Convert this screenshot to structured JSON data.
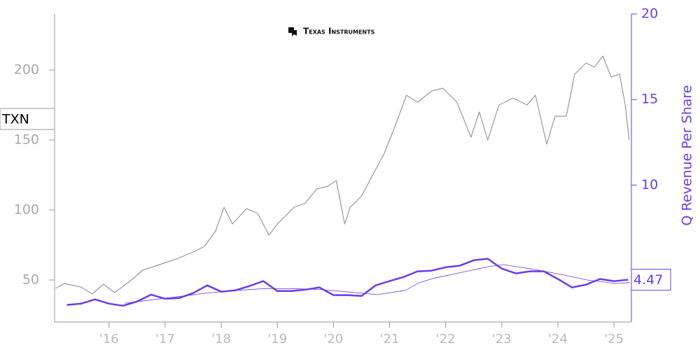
{
  "chart_data": {
    "type": "line",
    "logo": "Texas Instruments",
    "y2label": "Q Revenue Per Share",
    "xlim": [
      2015.03,
      2025.31
    ],
    "xticks": [
      {
        "value": 2016,
        "label": "'16"
      },
      {
        "value": 2017,
        "label": "'17"
      },
      {
        "value": 2018,
        "label": "'18"
      },
      {
        "value": 2019,
        "label": "'19"
      },
      {
        "value": 2020,
        "label": "'20"
      },
      {
        "value": 2021,
        "label": "'21"
      },
      {
        "value": 2022,
        "label": "'22"
      },
      {
        "value": 2023,
        "label": "'23"
      },
      {
        "value": 2024,
        "label": "'24"
      },
      {
        "value": 2025,
        "label": "'25"
      }
    ],
    "ylim": [
      20,
      240
    ],
    "yticks": [
      50,
      100,
      150,
      200
    ],
    "y2lim": [
      2,
      20
    ],
    "y2ticks": [
      10,
      15,
      20
    ],
    "series": [
      {
        "name": "TXN",
        "color": "#999999",
        "x": [
          2015.05,
          2015.2,
          2015.5,
          2015.7,
          2015.9,
          2016.1,
          2016.4,
          2016.6,
          2016.9,
          2017.2,
          2017.5,
          2017.7,
          2017.9,
          2018.05,
          2018.2,
          2018.45,
          2018.65,
          2018.85,
          2019.0,
          2019.3,
          2019.5,
          2019.7,
          2019.9,
          2020.05,
          2020.2,
          2020.3,
          2020.5,
          2020.7,
          2020.9,
          2021.1,
          2021.3,
          2021.5,
          2021.75,
          2021.95,
          2022.2,
          2022.45,
          2022.6,
          2022.75,
          2022.95,
          2023.2,
          2023.45,
          2023.6,
          2023.8,
          2023.95,
          2024.15,
          2024.3,
          2024.5,
          2024.65,
          2024.8,
          2024.95,
          2025.1,
          2025.2,
          2025.27
        ],
        "values": [
          44,
          47.5,
          45,
          40,
          47,
          41,
          50,
          57,
          61,
          65,
          70,
          74,
          85,
          102,
          90,
          101,
          97.5,
          82,
          90,
          102,
          105,
          115,
          117,
          121,
          90,
          102,
          110,
          125,
          140,
          160,
          182,
          177,
          185,
          187,
          177,
          152,
          170,
          150,
          175,
          180,
          175,
          182,
          147,
          167,
          167,
          197,
          205,
          202,
          210,
          195,
          197,
          175,
          150
        ]
      },
      {
        "color": "#6a3de8",
        "axis": "y2",
        "width": 2.5,
        "x": [
          2015.25,
          2015.5,
          2015.75,
          2016,
          2016.25,
          2016.5,
          2016.75,
          2017,
          2017.25,
          2017.5,
          2017.75,
          2018,
          2018.25,
          2018.5,
          2018.75,
          2019,
          2019.25,
          2019.5,
          2019.75,
          2020,
          2020.25,
          2020.5,
          2020.75,
          2021,
          2021.25,
          2021.5,
          2021.75,
          2022,
          2022.25,
          2022.5,
          2022.75,
          2023,
          2023.25,
          2023.5,
          2023.75,
          2024,
          2024.25,
          2024.5,
          2024.75,
          2025,
          2025.25
        ],
        "values": [
          3.0,
          3.07,
          3.32,
          3.07,
          2.95,
          3.2,
          3.6,
          3.36,
          3.4,
          3.69,
          4.14,
          3.77,
          3.85,
          4.1,
          4.39,
          3.81,
          3.81,
          3.89,
          4.02,
          3.57,
          3.57,
          3.52,
          4.14,
          4.39,
          4.63,
          4.96,
          5.0,
          5.2,
          5.29,
          5.61,
          5.7,
          5.12,
          4.84,
          4.96,
          4.96,
          4.51,
          4.02,
          4.18,
          4.51,
          4.39,
          4.47
        ]
      },
      {
        "color": "#6a3de8",
        "axis": "y2",
        "width": 0.8,
        "x": [
          2016.28,
          2016.78,
          2017.28,
          2017.78,
          2018.28,
          2018.78,
          2019.28,
          2019.78,
          2020.28,
          2020.78,
          2021.28,
          2021.53,
          2021.78,
          2022.28,
          2022.78,
          2023.03,
          2023.53,
          2024.03,
          2024.53,
          2025.03,
          2025.28
        ],
        "values": [
          3.1,
          3.3,
          3.5,
          3.7,
          3.85,
          3.95,
          3.95,
          3.9,
          3.75,
          3.6,
          3.85,
          4.3,
          4.55,
          4.9,
          5.25,
          5.35,
          5.1,
          4.8,
          4.45,
          4.25,
          4.3
        ]
      }
    ]
  }
}
